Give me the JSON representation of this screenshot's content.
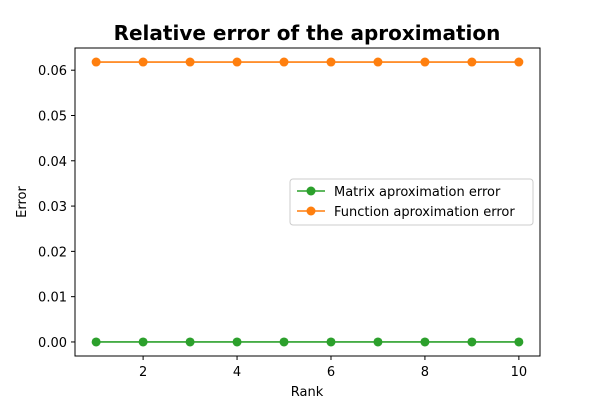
{
  "chart_data": {
    "type": "line",
    "title": "Relative error of the aproximation",
    "xlabel": "Rank",
    "ylabel": "Error",
    "x": [
      1,
      2,
      3,
      4,
      5,
      6,
      7,
      8,
      9,
      10
    ],
    "xlim": [
      0.55,
      10.45
    ],
    "ylim": [
      -0.0031,
      0.0649
    ],
    "xticks": [
      2,
      4,
      6,
      8,
      10
    ],
    "yticks": [
      "0.00",
      "0.01",
      "0.02",
      "0.03",
      "0.04",
      "0.05",
      "0.06"
    ],
    "grid": false,
    "legend_position": "center-right",
    "series": [
      {
        "name": "Matrix aproximation error",
        "color": "#2ca02c",
        "marker": "circle",
        "values": [
          0,
          0,
          0,
          0,
          0,
          0,
          0,
          0,
          0,
          0
        ]
      },
      {
        "name": "Function aproximation error",
        "color": "#ff7f0e",
        "marker": "circle",
        "values": [
          0.0618,
          0.0618,
          0.0618,
          0.0618,
          0.0618,
          0.0618,
          0.0618,
          0.0618,
          0.0618,
          0.0618
        ]
      }
    ]
  }
}
